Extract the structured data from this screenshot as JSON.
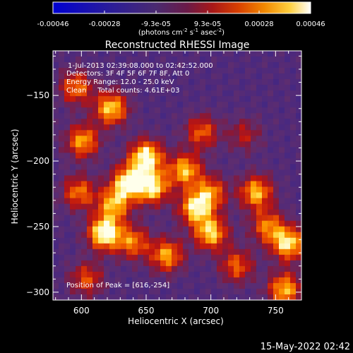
{
  "colorbar": {
    "tick_labels": [
      "-0.00046",
      "-0.00028",
      "-9.3e-05",
      "9.3e-05",
      "0.00028",
      "0.00046"
    ],
    "unit_main": "(photons cm",
    "unit_exp1": "-2",
    "unit_mid": " s",
    "unit_exp2": "-1",
    "unit_asec": " asec",
    "unit_exp3": "-2",
    "unit_end": ")",
    "range": [
      -0.00046,
      0.00046
    ],
    "colormap": "blue-purple-red-orange-yellow-white"
  },
  "chart_data": {
    "type": "heatmap",
    "title": "Reconstructed RHESSI Image",
    "xlabel": "Heliocentric X (arcsec)",
    "ylabel": "Heliocentric Y (arcsec)",
    "xlim": [
      578,
      770
    ],
    "ylim": [
      -306,
      -116
    ],
    "xticks": [
      600,
      650,
      700,
      750
    ],
    "yticks": [
      -150,
      -200,
      -250,
      -300
    ],
    "x_tick_labels": [
      "600",
      "650",
      "700",
      "750"
    ],
    "y_tick_labels": [
      "−150",
      "−200",
      "−250",
      "−300"
    ],
    "info_lines": [
      "1-Jul-2013 02:39:08.000 to 02:42:52.000",
      "Detectors: 3F 4F 5F 6F 7F 8F, Att 0",
      "Energy Range: 12.0 - 25.0 keV",
      "Clean     Total counts: 4.61E+03"
    ],
    "peak_label": "Position of Peak = [616,-254]",
    "peak": [
      616,
      -254
    ],
    "sources": [
      {
        "x": 596,
        "y": -144,
        "value": 0.6
      },
      {
        "x": 623,
        "y": -160,
        "value": 0.8
      },
      {
        "x": 601,
        "y": -185,
        "value": 0.7
      },
      {
        "x": 636,
        "y": -216,
        "value": 0.85
      },
      {
        "x": 650,
        "y": -197,
        "value": 0.95
      },
      {
        "x": 655,
        "y": -220,
        "value": 0.85
      },
      {
        "x": 618,
        "y": -255,
        "value": 1.0
      },
      {
        "x": 625,
        "y": -233,
        "value": 0.7
      },
      {
        "x": 598,
        "y": -224,
        "value": 0.6
      },
      {
        "x": 640,
        "y": -262,
        "value": 0.6
      },
      {
        "x": 666,
        "y": -272,
        "value": 0.7
      },
      {
        "x": 680,
        "y": -207,
        "value": 0.75
      },
      {
        "x": 688,
        "y": -236,
        "value": 0.8
      },
      {
        "x": 700,
        "y": -255,
        "value": 0.8
      },
      {
        "x": 700,
        "y": -224,
        "value": 0.6
      },
      {
        "x": 693,
        "y": -178,
        "value": 0.55
      },
      {
        "x": 720,
        "y": -280,
        "value": 0.55
      },
      {
        "x": 735,
        "y": -224,
        "value": 0.75
      },
      {
        "x": 744,
        "y": -250,
        "value": 0.6
      },
      {
        "x": 760,
        "y": -263,
        "value": 0.85
      },
      {
        "x": 757,
        "y": -298,
        "value": 0.75
      },
      {
        "x": 604,
        "y": -290,
        "value": 0.5
      },
      {
        "x": 726,
        "y": -180,
        "value": 0.35
      }
    ]
  },
  "footer": {
    "date": "15-May-2022 02:42"
  }
}
